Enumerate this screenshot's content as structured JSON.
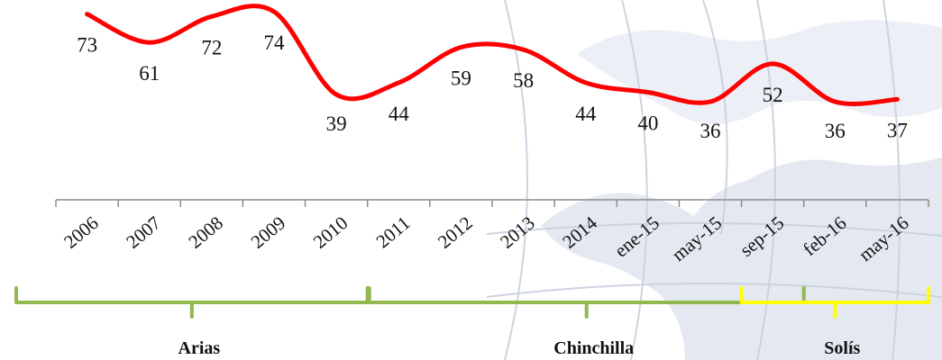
{
  "chart_data": {
    "type": "line",
    "categories": [
      "2006",
      "2007",
      "2008",
      "2009",
      "2010",
      "2011",
      "2012",
      "2013",
      "2014",
      "ene-15",
      "may-15",
      "sep-15",
      "feb-16",
      "may-16"
    ],
    "series": [
      {
        "values": [
          73,
          61,
          72,
          74,
          39,
          44,
          59,
          58,
          44,
          40,
          36,
          52,
          36,
          37
        ],
        "color": "#ff0000"
      }
    ],
    "data_labels": true,
    "ylim": [
      30,
      80
    ],
    "grid": false,
    "legend": "none",
    "periods": [
      {
        "label": "Arias",
        "from": "2006",
        "to": "2010",
        "color": "#92b850"
      },
      {
        "label": "Chinchilla",
        "from": "2011",
        "to": "sep-15",
        "color": "#92b850"
      },
      {
        "label": "Solís",
        "from": "sep-15",
        "to": "may-16",
        "color": "#ffff00"
      }
    ],
    "background_colors": {
      "map": "#dbe2ee",
      "map_lines": "#bcc6d8"
    }
  }
}
